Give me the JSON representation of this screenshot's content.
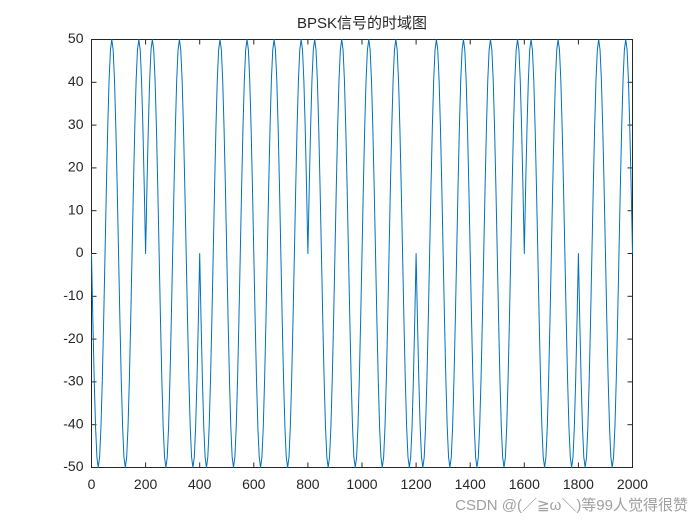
{
  "chart_data": {
    "type": "line",
    "title": "BPSK信号的时域图",
    "x": [
      0,
      5,
      10,
      15,
      20,
      25,
      30,
      35,
      40,
      45,
      50,
      55,
      60,
      65,
      70,
      75,
      80,
      85,
      90,
      95,
      100,
      105,
      110,
      115,
      120,
      125,
      130,
      135,
      140,
      145,
      150,
      155,
      160,
      165,
      170,
      175,
      180,
      185,
      190,
      195,
      200,
      205,
      210,
      215,
      220,
      225,
      230,
      235,
      240,
      245,
      250,
      255,
      260,
      265,
      270,
      275,
      280,
      285,
      290,
      295,
      300,
      305,
      310,
      315,
      320,
      325,
      330,
      335,
      340,
      345,
      350,
      355,
      360,
      365,
      370,
      375,
      380,
      385,
      390,
      395,
      400,
      405,
      410,
      415,
      420,
      425,
      430,
      435,
      440,
      445,
      450,
      455,
      460,
      465,
      470,
      475,
      480,
      485,
      490,
      495,
      500,
      505,
      510,
      515,
      520,
      525,
      530,
      535,
      540,
      545,
      550,
      555,
      560,
      565,
      570,
      575,
      580,
      585,
      590,
      595,
      600,
      605,
      610,
      615,
      620,
      625,
      630,
      635,
      640,
      645,
      650,
      655,
      660,
      665,
      670,
      675,
      680,
      685,
      690,
      695,
      700,
      705,
      710,
      715,
      720,
      725,
      730,
      735,
      740,
      745,
      750,
      755,
      760,
      765,
      770,
      775,
      780,
      785,
      790,
      795,
      800,
      805,
      810,
      815,
      820,
      825,
      830,
      835,
      840,
      845,
      850,
      855,
      860,
      865,
      870,
      875,
      880,
      885,
      890,
      895,
      900,
      905,
      910,
      915,
      920,
      925,
      930,
      935,
      940,
      945,
      950,
      955,
      960,
      965,
      970,
      975,
      980,
      985,
      990,
      995,
      1000,
      1005,
      1010,
      1015,
      1020,
      1025,
      1030,
      1035,
      1040,
      1045,
      1050,
      1055,
      1060,
      1065,
      1070,
      1075,
      1080,
      1085,
      1090,
      1095,
      1100,
      1105,
      1110,
      1115,
      1120,
      1125,
      1130,
      1135,
      1140,
      1145,
      1150,
      1155,
      1160,
      1165,
      1170,
      1175,
      1180,
      1185,
      1190,
      1195,
      1200,
      1205,
      1210,
      1215,
      1220,
      1225,
      1230,
      1235,
      1240,
      1245,
      1250,
      1255,
      1260,
      1265,
      1270,
      1275,
      1280,
      1285,
      1290,
      1295,
      1300,
      1305,
      1310,
      1315,
      1320,
      1325,
      1330,
      1335,
      1340,
      1345,
      1350,
      1355,
      1360,
      1365,
      1370,
      1375,
      1380,
      1385,
      1390,
      1395,
      1400,
      1405,
      1410,
      1415,
      1420,
      1425,
      1430,
      1435,
      1440,
      1445,
      1450,
      1455,
      1460,
      1465,
      1470,
      1475,
      1480,
      1485,
      1490,
      1495,
      1500,
      1505,
      1510,
      1515,
      1520,
      1525,
      1530,
      1535,
      1540,
      1545,
      1550,
      1555,
      1560,
      1565,
      1570,
      1575,
      1580,
      1585,
      1590,
      1595,
      1600,
      1605,
      1610,
      1615,
      1620,
      1625,
      1630,
      1635,
      1640,
      1645,
      1650,
      1655,
      1660,
      1665,
      1670,
      1675,
      1680,
      1685,
      1690,
      1695,
      1700,
      1705,
      1710,
      1715,
      1720,
      1725,
      1730,
      1735,
      1740,
      1745,
      1750,
      1755,
      1760,
      1765,
      1770,
      1775,
      1780,
      1785,
      1790,
      1795,
      1800,
      1805,
      1810,
      1815,
      1820,
      1825,
      1830,
      1835,
      1840,
      1845,
      1850,
      1855,
      1860,
      1865,
      1870,
      1875,
      1880,
      1885,
      1890,
      1895,
      1900,
      1905,
      1910,
      1915,
      1920,
      1925,
      1930,
      1935,
      1940,
      1945,
      1950,
      1955,
      1960,
      1965,
      1970,
      1975,
      1980,
      1985,
      1990,
      1995,
      2000
    ],
    "series": [
      {
        "color": "#0072bd",
        "values": [
          0,
          -15.5,
          -29.4,
          -40.5,
          -47.6,
          -50,
          -47.6,
          -40.5,
          -29.4,
          -15.5,
          0,
          15.5,
          29.4,
          40.5,
          47.6,
          50,
          47.6,
          40.5,
          29.4,
          15.5,
          0,
          -15.5,
          -29.4,
          -40.5,
          -47.6,
          -50,
          -47.6,
          -40.5,
          -29.4,
          -15.5,
          0,
          15.5,
          29.4,
          40.5,
          47.6,
          50,
          47.6,
          40.5,
          29.4,
          15.5,
          0,
          15.5,
          29.4,
          40.5,
          47.6,
          50,
          47.6,
          40.5,
          29.4,
          15.5,
          0,
          -15.5,
          -29.4,
          -40.5,
          -47.6,
          -50,
          -47.6,
          -40.5,
          -29.4,
          -15.5,
          0,
          15.5,
          29.4,
          40.5,
          47.6,
          50,
          47.6,
          40.5,
          29.4,
          15.5,
          0,
          -15.5,
          -29.4,
          -40.5,
          -47.6,
          -50,
          -47.6,
          -40.5,
          -29.4,
          -15.5,
          0,
          -15.5,
          -29.4,
          -40.5,
          -47.6,
          -50,
          -47.6,
          -40.5,
          -29.4,
          -15.5,
          0,
          15.5,
          29.4,
          40.5,
          47.6,
          50,
          47.6,
          40.5,
          29.4,
          15.5,
          0,
          -15.5,
          -29.4,
          -40.5,
          -47.6,
          -50,
          -47.6,
          -40.5,
          -29.4,
          -15.5,
          0,
          15.5,
          29.4,
          40.5,
          47.6,
          50,
          47.6,
          40.5,
          29.4,
          15.5,
          0,
          -15.5,
          -29.4,
          -40.5,
          -47.6,
          -50,
          -47.6,
          -40.5,
          -29.4,
          -15.5,
          0,
          15.5,
          29.4,
          40.5,
          47.6,
          50,
          47.6,
          40.5,
          29.4,
          15.5,
          0,
          -15.5,
          -29.4,
          -40.5,
          -47.6,
          -50,
          -47.6,
          -40.5,
          -29.4,
          -15.5,
          0,
          15.5,
          29.4,
          40.5,
          47.6,
          50,
          47.6,
          40.5,
          29.4,
          15.5,
          0,
          15.5,
          29.4,
          40.5,
          47.6,
          50,
          47.6,
          40.5,
          29.4,
          15.5,
          0,
          -15.5,
          -29.4,
          -40.5,
          -47.6,
          -50,
          -47.6,
          -40.5,
          -29.4,
          -15.5,
          0,
          15.5,
          29.4,
          40.5,
          47.6,
          50,
          47.6,
          40.5,
          29.4,
          15.5,
          0,
          -15.5,
          -29.4,
          -40.5,
          -47.6,
          -50,
          -47.6,
          -40.5,
          -29.4,
          -15.5,
          0,
          15.5,
          29.4,
          40.5,
          47.6,
          50,
          47.6,
          40.5,
          29.4,
          15.5,
          0,
          -15.5,
          -29.4,
          -40.5,
          -47.6,
          -50,
          -47.6,
          -40.5,
          -29.4,
          -15.5,
          0,
          15.5,
          29.4,
          40.5,
          47.6,
          50,
          47.6,
          40.5,
          29.4,
          15.5,
          0,
          -15.5,
          -29.4,
          -40.5,
          -47.6,
          -50,
          -47.6,
          -40.5,
          -29.4,
          -15.5,
          0,
          -15.5,
          -29.4,
          -40.5,
          -47.6,
          -50,
          -47.6,
          -40.5,
          -29.4,
          -15.5,
          0,
          15.5,
          29.4,
          40.5,
          47.6,
          50,
          47.6,
          40.5,
          29.4,
          15.5,
          0,
          -15.5,
          -29.4,
          -40.5,
          -47.6,
          -50,
          -47.6,
          -40.5,
          -29.4,
          -15.5,
          0,
          15.5,
          29.4,
          40.5,
          47.6,
          50,
          47.6,
          40.5,
          29.4,
          15.5,
          0,
          -15.5,
          -29.4,
          -40.5,
          -47.6,
          -50,
          -47.6,
          -40.5,
          -29.4,
          -15.5,
          0,
          15.5,
          29.4,
          40.5,
          47.6,
          50,
          47.6,
          40.5,
          29.4,
          15.5,
          0,
          -15.5,
          -29.4,
          -40.5,
          -47.6,
          -50,
          -47.6,
          -40.5,
          -29.4,
          -15.5,
          0,
          15.5,
          29.4,
          40.5,
          47.6,
          50,
          47.6,
          40.5,
          29.4,
          15.5,
          0,
          15.5,
          29.4,
          40.5,
          47.6,
          50,
          47.6,
          40.5,
          29.4,
          15.5,
          0,
          -15.5,
          -29.4,
          -40.5,
          -47.6,
          -50,
          -47.6,
          -40.5,
          -29.4,
          -15.5,
          0,
          15.5,
          29.4,
          40.5,
          47.6,
          50,
          47.6,
          40.5,
          29.4,
          15.5,
          0,
          -15.5,
          -29.4,
          -40.5,
          -47.6,
          -50,
          -47.6,
          -40.5,
          -29.4,
          -15.5,
          0,
          -15.5,
          -29.4,
          -40.5,
          -47.6,
          -50,
          -47.6,
          -40.5,
          -29.4,
          -15.5,
          0,
          15.5,
          29.4,
          40.5,
          47.6,
          50,
          47.6,
          40.5,
          29.4,
          15.5,
          0,
          -15.5,
          -29.4,
          -40.5,
          -47.6,
          -50,
          -47.6,
          -40.5,
          -29.4,
          -15.5,
          0,
          15.5,
          29.4,
          40.5,
          47.6,
          50,
          47.6,
          40.5,
          29.4,
          15.5,
          0
        ]
      }
    ],
    "xlim": [
      0,
      2000
    ],
    "xticks": [
      0,
      200,
      400,
      600,
      800,
      1000,
      1200,
      1400,
      1600,
      1800,
      2000
    ],
    "ylim": [
      -50,
      50
    ],
    "yticks": [
      -50,
      -40,
      -30,
      -20,
      -10,
      0,
      10,
      20,
      30,
      40,
      50
    ],
    "watermark": "CSDN @(／≧ω＼)等99人觉得很赞"
  }
}
